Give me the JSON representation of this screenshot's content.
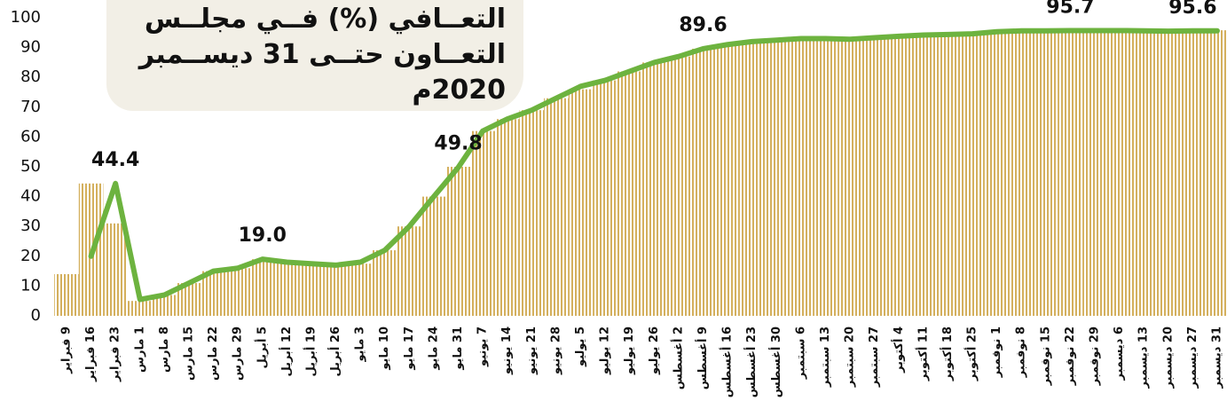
{
  "chart_data": {
    "type": "bar_line",
    "title": "التعــافي (%) فــي مجلــس التعــاون حتــى 31 ديســمبر 2020م",
    "categories": [
      "9 فبراير",
      "16 فبراير",
      "23 فبراير",
      "1 مارس",
      "8 مارس",
      "15 مارس",
      "22 مارس",
      "29 مارس",
      "5 أبريل",
      "12 أبريل",
      "19 أبريل",
      "26 أبريل",
      "3 مايو",
      "10 مايو",
      "17 مايو",
      "24 مايو",
      "31 مايو",
      "7 يونيو",
      "14 يونيو",
      "21 يونيو",
      "28 يونيو",
      "5 يوليو",
      "12 يوليو",
      "19 يوليو",
      "26 يوليو",
      "2 أغسطس",
      "9 أغسطس",
      "16 أغسطس",
      "23 أغسطس",
      "30 أغسطس",
      "6 سبتمبر",
      "13 سبتمبر",
      "20 سبتمبر",
      "27 سبتمبر",
      "4 أكتوبر",
      "11 أكتوبر",
      "18 أكتوبر",
      "25 أكتوبر",
      "1 نوفمبر",
      "8 نوفمبر",
      "15 نوفمبر",
      "22 نوفمبر",
      "29 نوفمبر",
      "6 ديسمبر",
      "13 ديسمبر",
      "20 ديسمبر",
      "27 ديسمبر",
      "31 ديسمبر"
    ],
    "bar_values": [
      14,
      44.4,
      31,
      5,
      7,
      11,
      15,
      16,
      19,
      18,
      17.5,
      17,
      17.5,
      22,
      30,
      40,
      50,
      62,
      66,
      69,
      73,
      76,
      79,
      82,
      85,
      87,
      89.6,
      91,
      92,
      92.5,
      93,
      93,
      92.8,
      93.3,
      93.8,
      94.2,
      94.4,
      94.6,
      95.3,
      95.6,
      95.6,
      95.7,
      95.7,
      95.7,
      95.6,
      95.5,
      95.6,
      95.8
    ],
    "bar_color": "#d4b05e",
    "line_values": [
      null,
      20,
      44.4,
      5.5,
      7,
      11,
      15,
      16,
      19.0,
      18,
      17.5,
      17,
      18,
      22,
      30,
      40,
      49.8,
      62,
      66,
      69,
      73,
      77,
      79,
      82,
      85,
      87,
      89.6,
      91,
      92,
      92.5,
      93,
      93,
      92.8,
      93.3,
      93.8,
      94.2,
      94.4,
      94.6,
      95.3,
      95.6,
      95.6,
      95.7,
      95.7,
      95.7,
      95.6,
      95.5,
      95.6,
      95.6
    ],
    "line_value_labels": [
      null,
      null,
      "44.4",
      null,
      null,
      null,
      null,
      null,
      "19.0",
      null,
      null,
      null,
      null,
      null,
      null,
      null,
      "49.8",
      null,
      null,
      null,
      null,
      null,
      null,
      null,
      null,
      null,
      "89.6",
      null,
      null,
      null,
      null,
      null,
      null,
      null,
      null,
      null,
      null,
      null,
      null,
      null,
      null,
      "95.7",
      null,
      null,
      null,
      null,
      "95.6",
      null
    ],
    "line_color": "#6db33f",
    "ylim": [
      0,
      100
    ],
    "yticks": [
      0,
      10,
      20,
      30,
      40,
      50,
      60,
      70,
      80,
      90,
      100
    ]
  }
}
